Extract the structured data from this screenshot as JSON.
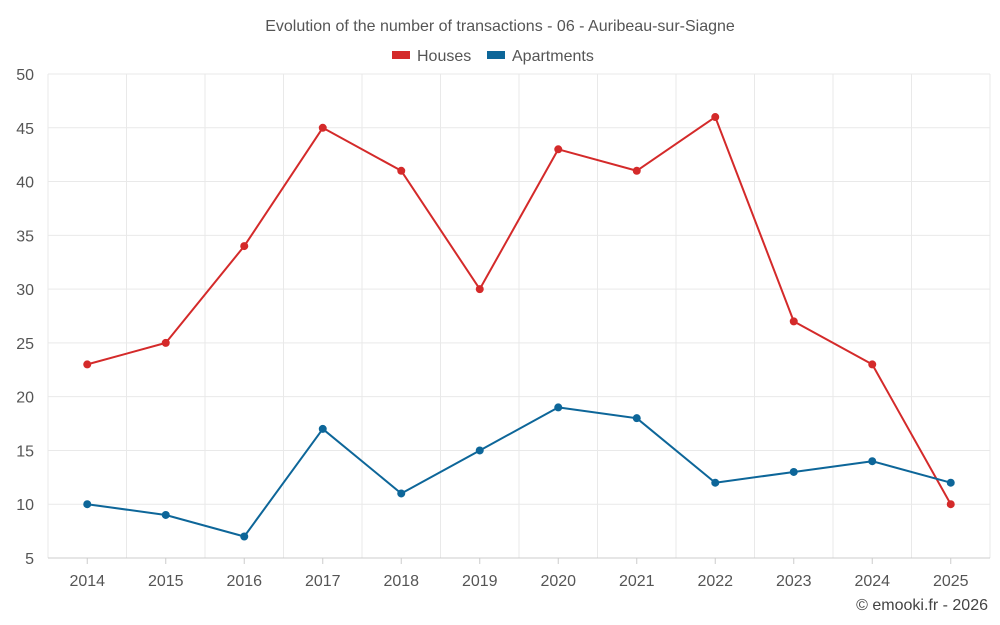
{
  "chart_data": {
    "type": "line",
    "title": "Evolution of the number of transactions - 06 - Auribeau-sur-Siagne",
    "categories": [
      "2014",
      "2015",
      "2016",
      "2017",
      "2018",
      "2019",
      "2020",
      "2021",
      "2022",
      "2023",
      "2024",
      "2025"
    ],
    "series": [
      {
        "name": "Houses",
        "color": "#d42a2a",
        "values": [
          23,
          25,
          34,
          45,
          41,
          30,
          43,
          41,
          46,
          27,
          23,
          10
        ]
      },
      {
        "name": "Apartments",
        "color": "#0d6699",
        "values": [
          10,
          9,
          7,
          17,
          11,
          15,
          19,
          18,
          12,
          13,
          14,
          12
        ]
      }
    ],
    "ylim": [
      5,
      50
    ],
    "yticks": [
      5,
      10,
      15,
      20,
      25,
      30,
      35,
      40,
      45,
      50
    ],
    "xlabel": "",
    "ylabel": "",
    "grid": true,
    "legend_position": "top-center"
  },
  "credit": "© emooki.fr - 2026"
}
